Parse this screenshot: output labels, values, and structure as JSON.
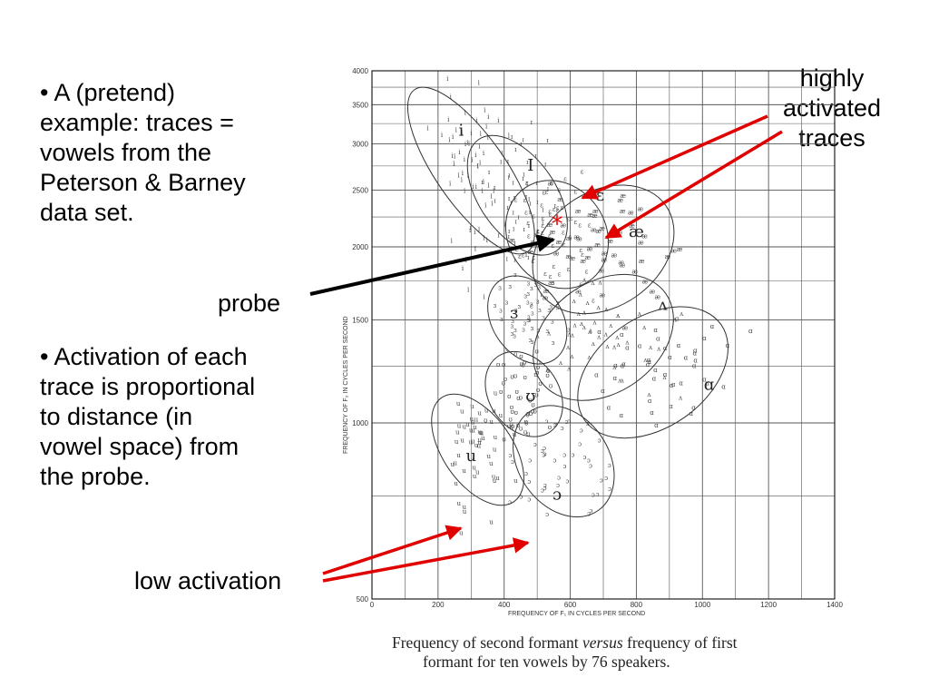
{
  "bullets": [
    "• A (pretend)\nexample: traces =\nvowels from the\nPeterson & Barney\ndata set.",
    "• Activation of each\ntrace is proportional\nto distance (in\nvowel space) from\nthe probe."
  ],
  "labels": {
    "probe": "probe",
    "low": "low activation",
    "high": "highly\nactivated\ntraces",
    "probe_mark": "*"
  },
  "caption": {
    "line1_a": "Frequency of second formant ",
    "line1_em": "versus",
    "line1_b": " frequency of first",
    "line2": "formant for ten vowels by 76 speakers."
  },
  "colors": {
    "arrow_red": "#e00000",
    "arrow_black": "#000000",
    "probe_star": "#e00000"
  },
  "chart_data": {
    "type": "scatter",
    "xlabel": "FREQUENCY OF F₁ IN CYCLES PER SECOND",
    "ylabel": "FREQUENCY OF F₂ IN CYCLES PER SECOND",
    "xlim": [
      0,
      1400
    ],
    "ylim": [
      500,
      4000
    ],
    "y_scale": "log",
    "grid": true,
    "x_ticks": [
      0,
      200,
      400,
      600,
      800,
      1000,
      1200,
      1400
    ],
    "x_tick_labels": [
      "0",
      "200",
      "400",
      "600",
      "800",
      "1000",
      "1200",
      "1400"
    ],
    "y_ticks": [
      500,
      1000,
      1500,
      2000,
      2500,
      3000,
      3500,
      4000
    ],
    "y_tick_labels": [
      "500",
      "1000",
      "1500",
      "2000",
      "2500",
      "3000",
      "3500",
      "4000"
    ],
    "vowel_labels": [
      {
        "symbol": "i",
        "x": 270,
        "y": 3100
      },
      {
        "symbol": "I",
        "x": 480,
        "y": 2700
      },
      {
        "symbol": "ɛ",
        "x": 690,
        "y": 2400
      },
      {
        "symbol": "æ",
        "x": 800,
        "y": 2080
      },
      {
        "symbol": "ʌ",
        "x": 880,
        "y": 1560
      },
      {
        "symbol": "ɑ",
        "x": 1020,
        "y": 1140
      },
      {
        "symbol": "ɜ",
        "x": 430,
        "y": 1510
      },
      {
        "symbol": "ʊ",
        "x": 480,
        "y": 1090
      },
      {
        "symbol": "u",
        "x": 300,
        "y": 860
      },
      {
        "symbol": "ɔ",
        "x": 560,
        "y": 740
      }
    ],
    "probe": {
      "x": 560,
      "y": 2200
    },
    "vowel_clusters": [
      {
        "symbol": "i",
        "cx": 300,
        "cy": 2700,
        "sx": 50,
        "sy": 500,
        "n": 60
      },
      {
        "symbol": "ɪ",
        "cx": 440,
        "cy": 2450,
        "sx": 55,
        "sy": 320,
        "n": 55
      },
      {
        "symbol": "ɛ",
        "cx": 560,
        "cy": 2100,
        "sx": 70,
        "sy": 230,
        "n": 55
      },
      {
        "symbol": "æ",
        "cx": 700,
        "cy": 1980,
        "sx": 110,
        "sy": 220,
        "n": 55
      },
      {
        "symbol": "ʌ",
        "cx": 700,
        "cy": 1400,
        "sx": 110,
        "sy": 150,
        "n": 50
      },
      {
        "symbol": "ɑ",
        "cx": 850,
        "cy": 1220,
        "sx": 120,
        "sy": 130,
        "n": 45
      },
      {
        "symbol": "ɜ",
        "cx": 470,
        "cy": 1500,
        "sx": 50,
        "sy": 140,
        "n": 45
      },
      {
        "symbol": "ʊ",
        "cx": 460,
        "cy": 1120,
        "sx": 50,
        "sy": 100,
        "n": 50
      },
      {
        "symbol": "u",
        "cx": 320,
        "cy": 900,
        "sx": 50,
        "sy": 110,
        "n": 55
      },
      {
        "symbol": "ɔ",
        "cx": 580,
        "cy": 860,
        "sx": 65,
        "sy": 100,
        "n": 45
      }
    ]
  }
}
